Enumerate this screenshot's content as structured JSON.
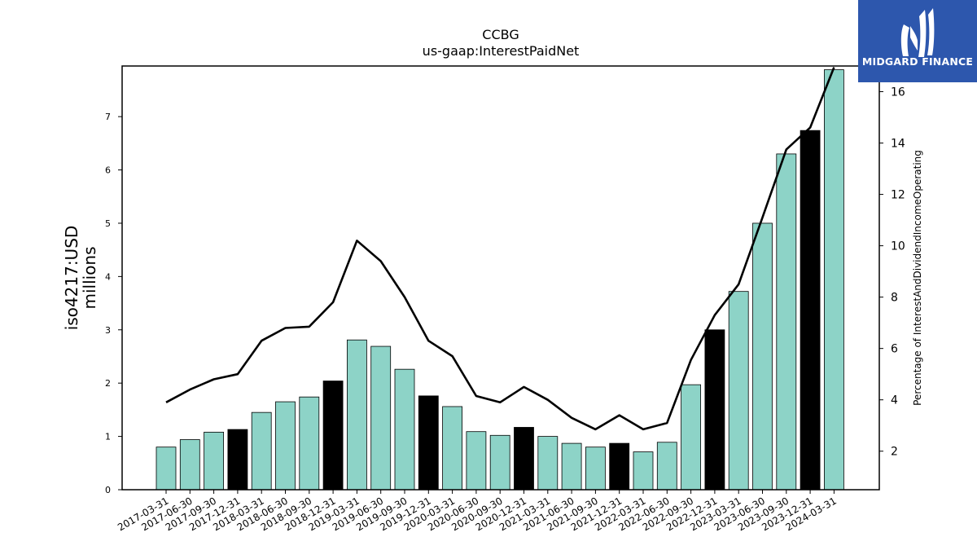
{
  "chart_data": {
    "type": "bar",
    "title": "CCBG",
    "subtitle": "us-gaap:InterestPaidNet",
    "ylabel": "iso4217:USD",
    "ylabel_sub": "millions",
    "y2label": "Percentage of InterestAndDividendIncomeOperating",
    "ylim": [
      0,
      7.95
    ],
    "y2lim": [
      0.5,
      17.0
    ],
    "yticks": [
      0,
      1,
      2,
      3,
      4,
      5,
      6,
      7
    ],
    "y2ticks": [
      2,
      4,
      6,
      8,
      10,
      12,
      14,
      16
    ],
    "categories": [
      "2017-03-31",
      "2017-06-30",
      "2017-09-30",
      "2017-12-31",
      "2018-03-31",
      "2018-06-30",
      "2018-09-30",
      "2018-12-31",
      "2019-03-31",
      "2019-06-30",
      "2019-09-30",
      "2019-12-31",
      "2020-03-31",
      "2020-06-30",
      "2020-09-30",
      "2020-12-31",
      "2021-03-31",
      "2021-06-30",
      "2021-09-30",
      "2021-12-31",
      "2022-03-31",
      "2022-06-30",
      "2022-09-30",
      "2022-12-31",
      "2023-03-31",
      "2023-06-30",
      "2023-09-30",
      "2023-12-31",
      "2024-03-31"
    ],
    "series": [
      {
        "type": "bar",
        "axis": "left",
        "values": [
          0.8,
          0.94,
          1.08,
          1.13,
          1.45,
          1.65,
          1.74,
          2.04,
          2.81,
          2.69,
          2.26,
          1.76,
          1.56,
          1.09,
          1.02,
          1.17,
          1.0,
          0.87,
          0.8,
          0.87,
          0.71,
          0.89,
          1.97,
          3.0,
          3.72,
          5.0,
          6.3,
          6.74,
          7.88
        ],
        "colors": [
          "#8dd3c7",
          "#8dd3c7",
          "#8dd3c7",
          "#000000",
          "#8dd3c7",
          "#8dd3c7",
          "#8dd3c7",
          "#000000",
          "#8dd3c7",
          "#8dd3c7",
          "#8dd3c7",
          "#000000",
          "#8dd3c7",
          "#8dd3c7",
          "#8dd3c7",
          "#000000",
          "#8dd3c7",
          "#8dd3c7",
          "#8dd3c7",
          "#000000",
          "#8dd3c7",
          "#8dd3c7",
          "#8dd3c7",
          "#000000",
          "#8dd3c7",
          "#8dd3c7",
          "#8dd3c7",
          "#000000",
          "#8dd3c7"
        ]
      },
      {
        "type": "line",
        "axis": "right",
        "color": "#000000",
        "values": [
          3.9,
          4.4,
          4.8,
          5.0,
          6.3,
          6.8,
          6.85,
          7.8,
          10.2,
          9.4,
          8.0,
          6.3,
          5.7,
          4.15,
          3.9,
          4.5,
          4.0,
          3.3,
          2.85,
          3.4,
          2.85,
          3.1,
          5.55,
          7.3,
          8.5,
          11.1,
          13.75,
          14.6,
          16.95
        ]
      }
    ],
    "grid": false,
    "legend": "none",
    "accent_teal": "#8dd3c7"
  },
  "logo": {
    "text": "MIDGARD FINANCE",
    "background": "#2d57ad"
  }
}
